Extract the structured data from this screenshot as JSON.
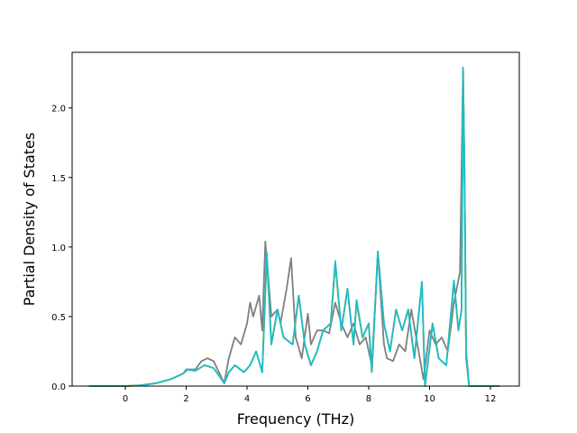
{
  "chart_data": {
    "type": "line",
    "title": "",
    "xlabel": "Frequency (THz)",
    "ylabel": "Partial Density of States",
    "xlim": [
      -1.75,
      12.95
    ],
    "ylim": [
      0.0,
      2.4
    ],
    "xticks": [
      0,
      2,
      4,
      6,
      8,
      10,
      12
    ],
    "yticks": [
      0.0,
      0.5,
      1.0,
      1.5,
      2.0
    ],
    "xtick_labels": [
      "0",
      "2",
      "4",
      "6",
      "8",
      "10",
      "12"
    ],
    "ytick_labels": [
      "0.0",
      "0.5",
      "1.0",
      "1.5",
      "2.0"
    ],
    "grid": false,
    "legend": "none",
    "series": [
      {
        "color": "#ff7f0e",
        "points": [
          [
            -1.2,
            0
          ],
          [
            0,
            0
          ],
          [
            0.5,
            0.005
          ],
          [
            1.0,
            0.02
          ],
          [
            1.5,
            0.05
          ],
          [
            1.9,
            0.09
          ],
          [
            2.0,
            0.12
          ],
          [
            2.3,
            0.11
          ],
          [
            2.6,
            0.15
          ],
          [
            2.9,
            0.13
          ],
          [
            3.1,
            0.07
          ],
          [
            3.25,
            0.02
          ],
          [
            3.4,
            0.1
          ],
          [
            3.6,
            0.15
          ],
          [
            3.9,
            0.1
          ],
          [
            4.1,
            0.15
          ],
          [
            4.3,
            0.25
          ],
          [
            4.5,
            0.1
          ],
          [
            4.65,
            0.95
          ],
          [
            4.8,
            0.3
          ],
          [
            5.0,
            0.55
          ],
          [
            5.2,
            0.35
          ],
          [
            5.5,
            0.3
          ],
          [
            5.7,
            0.65
          ],
          [
            5.9,
            0.3
          ],
          [
            6.1,
            0.15
          ],
          [
            6.3,
            0.25
          ],
          [
            6.5,
            0.4
          ],
          [
            6.75,
            0.45
          ],
          [
            6.9,
            0.88
          ],
          [
            7.1,
            0.4
          ],
          [
            7.3,
            0.7
          ],
          [
            7.5,
            0.3
          ],
          [
            7.6,
            0.6
          ],
          [
            7.8,
            0.35
          ],
          [
            8.0,
            0.45
          ],
          [
            8.1,
            0.1
          ],
          [
            8.3,
            0.96
          ],
          [
            8.5,
            0.45
          ],
          [
            8.7,
            0.25
          ],
          [
            8.9,
            0.55
          ],
          [
            9.1,
            0.4
          ],
          [
            9.3,
            0.55
          ],
          [
            9.5,
            0.2
          ],
          [
            9.75,
            0.75
          ],
          [
            9.85,
            0.0
          ],
          [
            10.1,
            0.45
          ],
          [
            10.3,
            0.2
          ],
          [
            10.55,
            0.15
          ],
          [
            10.8,
            0.75
          ],
          [
            10.95,
            0.4
          ],
          [
            11.05,
            0.55
          ],
          [
            11.1,
            2.29
          ],
          [
            11.15,
            1.5
          ],
          [
            11.2,
            0.25
          ],
          [
            11.3,
            0.0
          ],
          [
            12.3,
            0.0
          ]
        ]
      },
      {
        "color": "#7f7f7f",
        "points": [
          [
            -1.2,
            0
          ],
          [
            0,
            0
          ],
          [
            0.5,
            0.005
          ],
          [
            1.0,
            0.02
          ],
          [
            1.5,
            0.05
          ],
          [
            1.9,
            0.09
          ],
          [
            2.05,
            0.12
          ],
          [
            2.3,
            0.12
          ],
          [
            2.5,
            0.18
          ],
          [
            2.7,
            0.2
          ],
          [
            2.9,
            0.18
          ],
          [
            3.1,
            0.09
          ],
          [
            3.25,
            0.02
          ],
          [
            3.4,
            0.2
          ],
          [
            3.6,
            0.35
          ],
          [
            3.8,
            0.3
          ],
          [
            4.0,
            0.45
          ],
          [
            4.1,
            0.6
          ],
          [
            4.2,
            0.5
          ],
          [
            4.4,
            0.65
          ],
          [
            4.5,
            0.4
          ],
          [
            4.6,
            1.04
          ],
          [
            4.8,
            0.5
          ],
          [
            5.0,
            0.55
          ],
          [
            5.1,
            0.45
          ],
          [
            5.3,
            0.7
          ],
          [
            5.45,
            0.92
          ],
          [
            5.6,
            0.35
          ],
          [
            5.8,
            0.2
          ],
          [
            6.0,
            0.52
          ],
          [
            6.1,
            0.3
          ],
          [
            6.3,
            0.4
          ],
          [
            6.5,
            0.4
          ],
          [
            6.7,
            0.38
          ],
          [
            6.9,
            0.6
          ],
          [
            7.1,
            0.45
          ],
          [
            7.3,
            0.35
          ],
          [
            7.5,
            0.45
          ],
          [
            7.7,
            0.3
          ],
          [
            7.9,
            0.35
          ],
          [
            8.1,
            0.15
          ],
          [
            8.3,
            0.95
          ],
          [
            8.5,
            0.3
          ],
          [
            8.6,
            0.2
          ],
          [
            8.8,
            0.18
          ],
          [
            9.0,
            0.3
          ],
          [
            9.2,
            0.25
          ],
          [
            9.4,
            0.55
          ],
          [
            9.6,
            0.3
          ],
          [
            9.8,
            0.05
          ],
          [
            10.0,
            0.4
          ],
          [
            10.2,
            0.3
          ],
          [
            10.4,
            0.35
          ],
          [
            10.6,
            0.25
          ],
          [
            10.8,
            0.6
          ],
          [
            11.0,
            0.82
          ],
          [
            11.1,
            2.29
          ],
          [
            11.15,
            1.5
          ],
          [
            11.2,
            0.2
          ],
          [
            11.3,
            0.0
          ],
          [
            12.3,
            0.0
          ]
        ]
      },
      {
        "color": "#bcbd22",
        "points": [
          [
            -1.2,
            0
          ],
          [
            0,
            0
          ],
          [
            0.5,
            0.005
          ],
          [
            1.0,
            0.02
          ],
          [
            1.5,
            0.05
          ],
          [
            1.9,
            0.09
          ],
          [
            2.0,
            0.12
          ],
          [
            2.3,
            0.11
          ],
          [
            2.6,
            0.15
          ],
          [
            2.9,
            0.13
          ],
          [
            3.1,
            0.07
          ],
          [
            3.25,
            0.02
          ],
          [
            3.4,
            0.1
          ],
          [
            3.6,
            0.15
          ],
          [
            3.9,
            0.1
          ],
          [
            4.1,
            0.15
          ],
          [
            4.3,
            0.25
          ],
          [
            4.5,
            0.1
          ],
          [
            4.65,
            0.93
          ],
          [
            4.8,
            0.3
          ],
          [
            5.0,
            0.55
          ],
          [
            5.2,
            0.35
          ],
          [
            5.5,
            0.3
          ],
          [
            5.7,
            0.65
          ],
          [
            5.9,
            0.3
          ],
          [
            6.1,
            0.15
          ],
          [
            6.3,
            0.25
          ],
          [
            6.5,
            0.4
          ],
          [
            6.75,
            0.45
          ],
          [
            6.9,
            0.88
          ],
          [
            7.1,
            0.4
          ],
          [
            7.3,
            0.7
          ],
          [
            7.5,
            0.3
          ],
          [
            7.6,
            0.6
          ],
          [
            7.8,
            0.35
          ],
          [
            8.0,
            0.45
          ],
          [
            8.1,
            0.1
          ],
          [
            8.3,
            0.95
          ],
          [
            8.5,
            0.45
          ],
          [
            8.7,
            0.25
          ],
          [
            8.9,
            0.55
          ],
          [
            9.1,
            0.4
          ],
          [
            9.3,
            0.55
          ],
          [
            9.5,
            0.2
          ],
          [
            9.75,
            0.74
          ],
          [
            9.85,
            0.0
          ],
          [
            10.1,
            0.45
          ],
          [
            10.3,
            0.2
          ],
          [
            10.55,
            0.15
          ],
          [
            10.8,
            0.75
          ],
          [
            10.95,
            0.4
          ],
          [
            11.05,
            0.55
          ],
          [
            11.1,
            2.28
          ],
          [
            11.15,
            1.5
          ],
          [
            11.2,
            0.25
          ],
          [
            11.3,
            0.0
          ],
          [
            12.3,
            0.0
          ]
        ]
      },
      {
        "color": "#17becf",
        "points": [
          [
            -1.2,
            0
          ],
          [
            0,
            0
          ],
          [
            0.5,
            0.005
          ],
          [
            1.0,
            0.02
          ],
          [
            1.5,
            0.05
          ],
          [
            1.9,
            0.09
          ],
          [
            2.0,
            0.12
          ],
          [
            2.3,
            0.11
          ],
          [
            2.6,
            0.15
          ],
          [
            2.9,
            0.13
          ],
          [
            3.1,
            0.07
          ],
          [
            3.25,
            0.02
          ],
          [
            3.4,
            0.1
          ],
          [
            3.6,
            0.15
          ],
          [
            3.9,
            0.1
          ],
          [
            4.1,
            0.15
          ],
          [
            4.3,
            0.25
          ],
          [
            4.5,
            0.1
          ],
          [
            4.65,
            0.96
          ],
          [
            4.8,
            0.3
          ],
          [
            5.0,
            0.55
          ],
          [
            5.2,
            0.35
          ],
          [
            5.5,
            0.3
          ],
          [
            5.7,
            0.65
          ],
          [
            5.9,
            0.3
          ],
          [
            6.1,
            0.15
          ],
          [
            6.3,
            0.25
          ],
          [
            6.5,
            0.4
          ],
          [
            6.75,
            0.45
          ],
          [
            6.9,
            0.9
          ],
          [
            7.1,
            0.4
          ],
          [
            7.3,
            0.7
          ],
          [
            7.5,
            0.3
          ],
          [
            7.6,
            0.62
          ],
          [
            7.8,
            0.35
          ],
          [
            8.0,
            0.45
          ],
          [
            8.1,
            0.1
          ],
          [
            8.3,
            0.97
          ],
          [
            8.5,
            0.45
          ],
          [
            8.7,
            0.25
          ],
          [
            8.9,
            0.55
          ],
          [
            9.1,
            0.4
          ],
          [
            9.3,
            0.55
          ],
          [
            9.5,
            0.2
          ],
          [
            9.75,
            0.75
          ],
          [
            9.85,
            0.0
          ],
          [
            10.1,
            0.45
          ],
          [
            10.3,
            0.2
          ],
          [
            10.55,
            0.15
          ],
          [
            10.8,
            0.76
          ],
          [
            10.95,
            0.4
          ],
          [
            11.05,
            0.55
          ],
          [
            11.1,
            2.29
          ],
          [
            11.15,
            1.5
          ],
          [
            11.2,
            0.25
          ],
          [
            11.3,
            0.0
          ],
          [
            12.3,
            0.0
          ]
        ]
      }
    ]
  }
}
